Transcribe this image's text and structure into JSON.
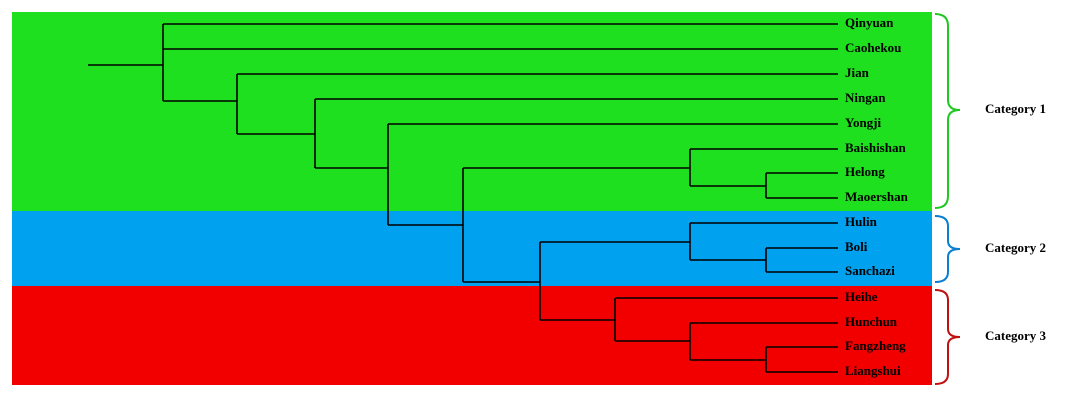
{
  "leaves": [
    "Qinyuan",
    "Caohekou",
    "Jian",
    "Ningan",
    "Yongji",
    "Baishishan",
    "Helong",
    "Maoershan",
    "Hulin",
    "Boli",
    "Sanchazi",
    "Heihe",
    "Hunchun",
    "Fangzheng",
    "Liangshui"
  ],
  "categories": [
    "Category 1",
    "Category 2",
    "Category 3"
  ]
}
